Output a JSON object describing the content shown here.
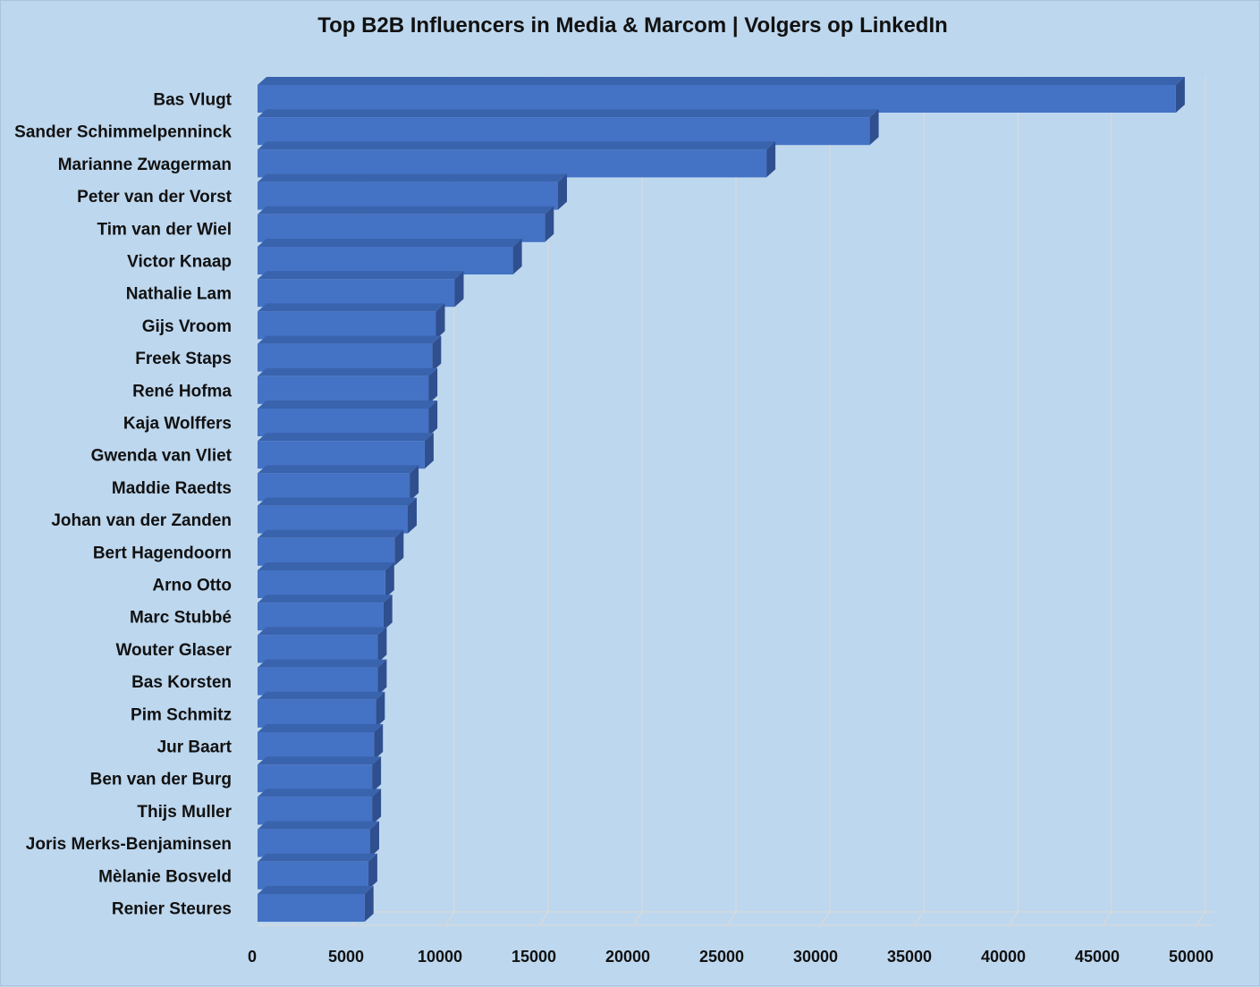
{
  "chart_data": {
    "type": "bar",
    "orientation": "horizontal",
    "style": "3d",
    "title": "Top B2B Influencers in Media & Marcom | Volgers op LinkedIn",
    "xlabel": "",
    "ylabel": "",
    "xlim": [
      0,
      50000
    ],
    "x_ticks": [
      "0",
      "5000",
      "10000",
      "15000",
      "20000",
      "25000",
      "30000",
      "35000",
      "40000",
      "45000",
      "50000"
    ],
    "grid": true,
    "legend": "none",
    "bar_color": "#4472c4",
    "categories": [
      "Bas Vlugt",
      "Sander Schimmelpenninck",
      "Marianne Zwagerman",
      "Peter van der Vorst",
      "Tim van der Wiel",
      "Victor Knaap",
      "Nathalie Lam",
      "Gijs Vroom",
      "Freek Staps",
      "René Hofma",
      "Kaja Wolffers",
      "Gwenda van Vliet",
      "Maddie Raedts",
      "Johan van der Zanden",
      "Bert Hagendoorn",
      "Arno Otto",
      "Marc Stubbé",
      "Wouter Glaser",
      "Bas Korsten",
      "Pim Schmitz",
      "Jur Baart",
      "Ben van der Burg",
      "Thijs Muller",
      "Joris Merks-Benjaminsen",
      "Mèlanie Bosveld",
      "Renier Steures"
    ],
    "values": [
      48900,
      32600,
      27100,
      16000,
      15300,
      13600,
      10500,
      9500,
      9300,
      9100,
      9100,
      8900,
      8100,
      8000,
      7300,
      6800,
      6700,
      6400,
      6400,
      6300,
      6200,
      6100,
      6100,
      6000,
      5900,
      5700
    ]
  }
}
